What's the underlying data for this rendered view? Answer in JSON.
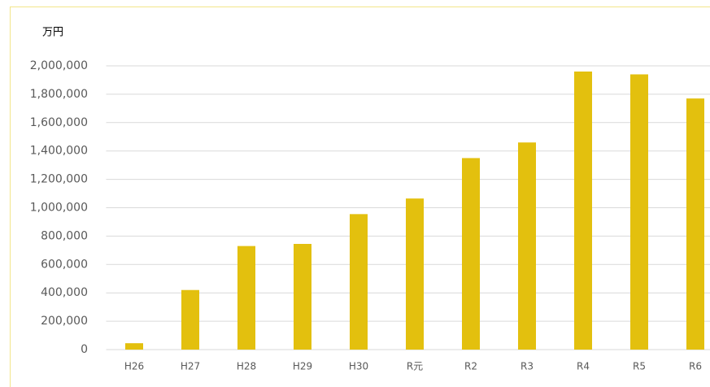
{
  "chart_data": {
    "type": "bar",
    "y_label": "万円",
    "categories": [
      "H26",
      "H27",
      "H28",
      "H29",
      "H30",
      "R元",
      "R2",
      "R3",
      "R4",
      "R5",
      "R6"
    ],
    "values": [
      45000,
      420000,
      730000,
      745000,
      955000,
      1065000,
      1350000,
      1460000,
      1960000,
      1940000,
      1770000
    ],
    "color": "#e3c00e",
    "ylim": [
      0,
      2000000
    ],
    "yticks": [
      0,
      {
        "value": 200000,
        "label": "200,000"
      },
      {
        "value": 400000,
        "label": "400,000"
      },
      {
        "value": 600000,
        "label": "600,000"
      },
      {
        "value": 800000,
        "label": "800,000"
      },
      {
        "value": 1000000,
        "label": "1,000,000"
      },
      {
        "value": 1200000,
        "label": "1,200,000"
      },
      {
        "value": 1400000,
        "label": "1,400,000"
      },
      {
        "value": 1600000,
        "label": "1,600,000"
      },
      {
        "value": 1800000,
        "label": "1,800,000"
      },
      {
        "value": 2000000,
        "label": "2,000,000"
      }
    ],
    "grid": true
  }
}
